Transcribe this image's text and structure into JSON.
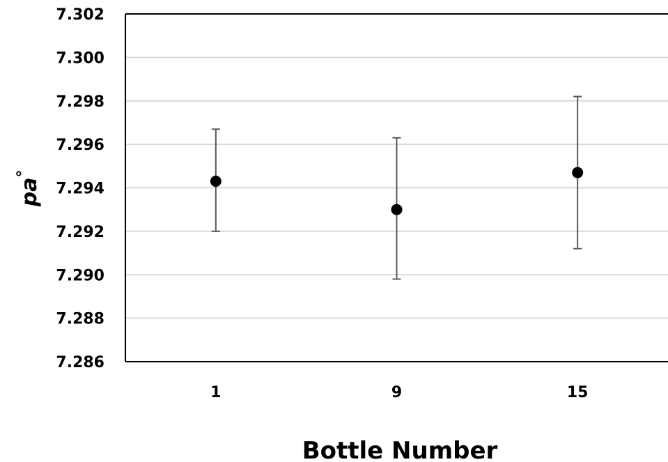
{
  "chart_data": {
    "type": "scatter",
    "title": "",
    "xlabel": "Bottle Number",
    "ylabel_main": "pa",
    "ylabel_sup": "°",
    "categories": [
      "1",
      "9",
      "15"
    ],
    "series": [
      {
        "values": [
          7.2943,
          7.293,
          7.2947
        ],
        "error_upper": [
          7.2967,
          7.2963,
          7.2982
        ],
        "error_lower": [
          7.292,
          7.2898,
          7.2912
        ]
      }
    ],
    "ylim": [
      7.286,
      7.302
    ],
    "yticks": [
      "7.286",
      "7.288",
      "7.290",
      "7.292",
      "7.294",
      "7.296",
      "7.298",
      "7.300",
      "7.302"
    ],
    "grid": true,
    "legend": "none",
    "colors": {
      "marker": "#000000",
      "errorbar": "#595959",
      "grid": "#d9d9d9",
      "axis": "#000000"
    }
  }
}
